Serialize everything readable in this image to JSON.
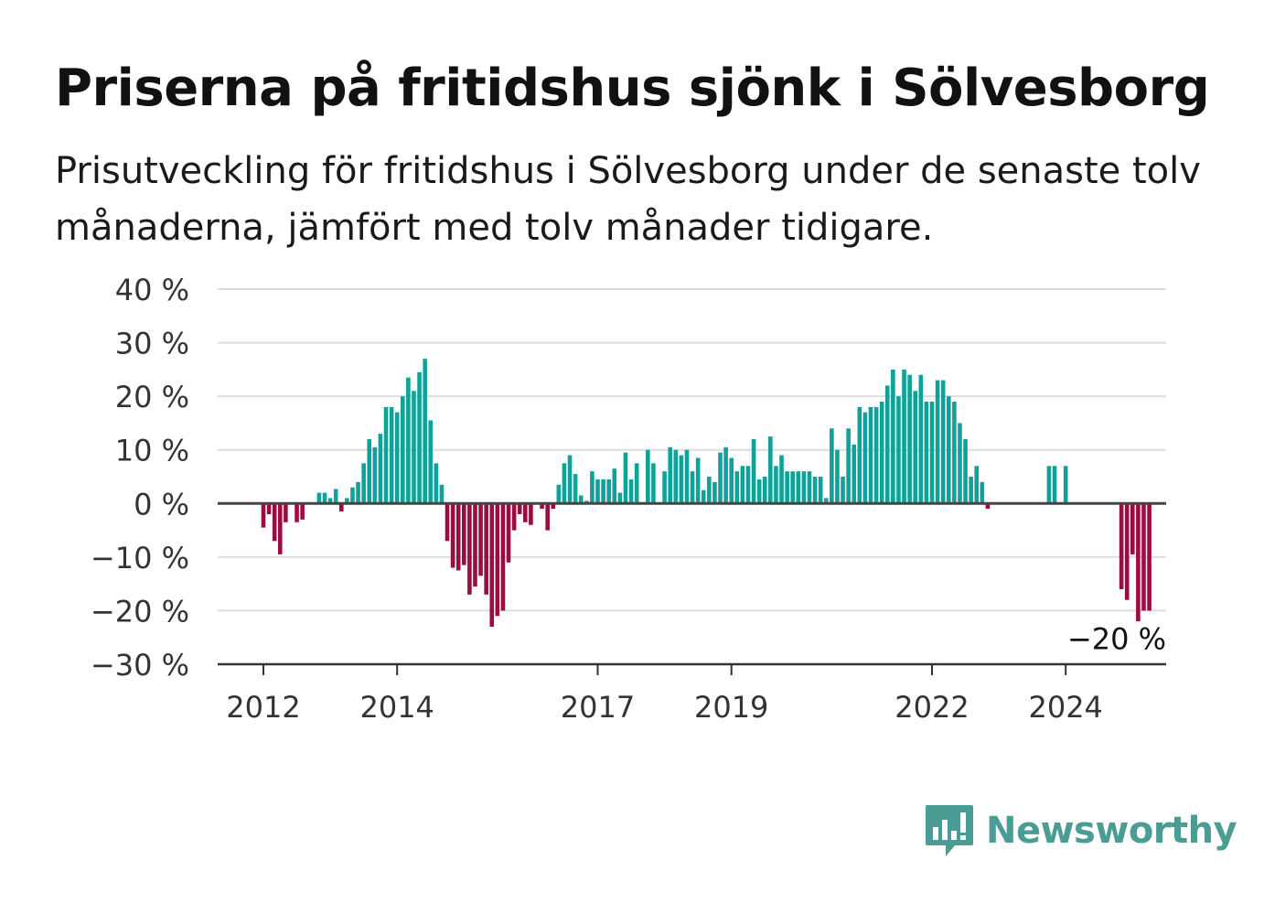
{
  "header": {
    "title": "Priserna på fritidshus sjönk i Sölvesborg",
    "subtitle": "Prisutveckling för fritidshus i Sölvesborg under de senaste tolv månaderna, jämfört med tolv månader tidigare."
  },
  "brand": {
    "name": "Newsworthy",
    "color": "#4a9c95",
    "icon": "newsworthy-logo-icon"
  },
  "colors": {
    "positive": "#0ea39a",
    "negative": "#9b0d42",
    "grid": "#dddddd",
    "axis": "#444444"
  },
  "chart_data": {
    "type": "bar",
    "ylim": [
      -30,
      40
    ],
    "yticks": [
      40,
      30,
      20,
      10,
      0,
      -10,
      -20,
      -30
    ],
    "ytick_labels": [
      "40 %",
      "30 %",
      "20 %",
      "10 %",
      "0 %",
      "−10 %",
      "−20 %",
      "−30 %"
    ],
    "xticks": [
      2012,
      2014,
      2017,
      2019,
      2022,
      2024
    ],
    "xtick_labels": [
      "2012",
      "2014",
      "2017",
      "2019",
      "2022",
      "2024"
    ],
    "x_start": 2011.25,
    "annotation": {
      "text": "−20 %",
      "value": -20
    },
    "grid": true,
    "values": [
      null,
      null,
      null,
      null,
      null,
      null,
      null,
      null,
      null,
      -4.5,
      -2,
      -7,
      -9.5,
      -3.5,
      0,
      -3.5,
      -3,
      0,
      0,
      2,
      2,
      1,
      2.7,
      -1.5,
      1,
      3,
      4,
      7.5,
      12,
      10.5,
      13,
      18,
      18,
      17,
      20,
      23.5,
      21,
      24.5,
      27,
      15.5,
      7.5,
      3.5,
      -7,
      -12,
      -12.5,
      -11.5,
      -17,
      -15.5,
      -13.5,
      -17,
      -23,
      -21,
      -20,
      -11,
      -5,
      -2,
      -3.5,
      -4,
      0,
      -1,
      -5,
      -1,
      3.5,
      7.5,
      9,
      5.5,
      1.5,
      0.5,
      6,
      4.5,
      4.5,
      4.5,
      6.5,
      2,
      9.5,
      4.5,
      7.5,
      0,
      10,
      7.5,
      0,
      6,
      10.5,
      10,
      9,
      10,
      6,
      8.5,
      2.5,
      5,
      4,
      9.5,
      10.5,
      8.5,
      6,
      7,
      7,
      12,
      4.5,
      5,
      12.5,
      7,
      9,
      6,
      6,
      6,
      6,
      6,
      5,
      5,
      1,
      14,
      10,
      5,
      14,
      11,
      18,
      17,
      18,
      18,
      19,
      22,
      25,
      20,
      25,
      24,
      21,
      24,
      19,
      19,
      23,
      23,
      20,
      19,
      15,
      12,
      5,
      7,
      4,
      -1,
      null,
      null,
      null,
      null,
      null,
      null,
      null,
      null,
      null,
      null,
      7,
      7,
      null,
      7,
      null,
      null,
      null,
      null,
      null,
      null,
      null,
      null,
      null,
      -16,
      -18,
      -9.5,
      -22,
      -20,
      -20
    ]
  }
}
